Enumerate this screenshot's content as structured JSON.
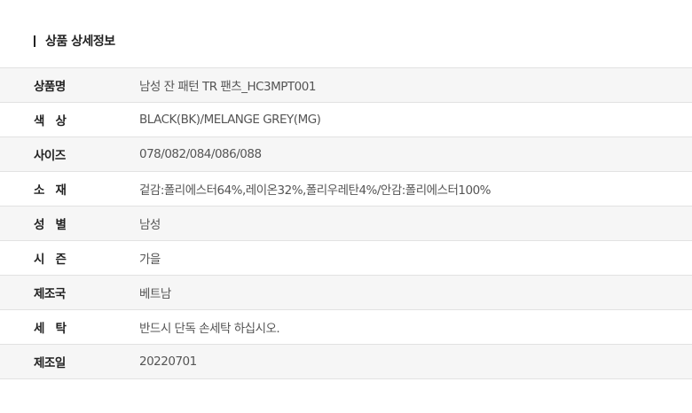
{
  "title": "상품 상세정보",
  "rows": [
    {
      "label": "상품명",
      "value": "남성 잔 패턴 TR 팬츠_HC3MPT001"
    },
    {
      "label": "색   상",
      "value": "BLACK(BK)/MELANGE GREY(MG)"
    },
    {
      "label": "사이즈",
      "value": "078/082/084/086/088"
    },
    {
      "label": "소   재",
      "value": "겉감:폴리에스터64%,레이온32%,폴리우레탄4%/안감:폴리에스터100%"
    },
    {
      "label": "성   별",
      "value": "남성"
    },
    {
      "label": "시   즌",
      "value": "가을"
    },
    {
      "label": "제조국",
      "value": "베트남"
    },
    {
      "label": "세   탁",
      "value": "반드시 단독 손세탁 하십시오."
    },
    {
      "label": "제조일",
      "value": "20220701"
    }
  ]
}
